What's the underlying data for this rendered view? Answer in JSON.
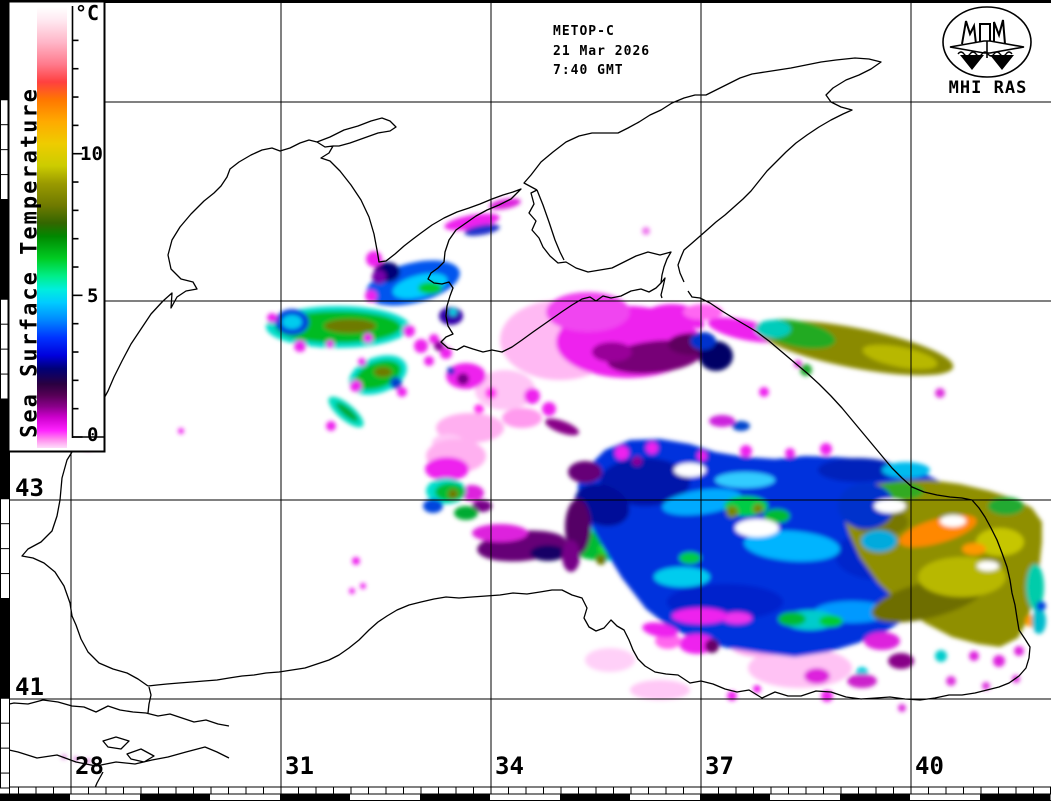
{
  "header": {
    "satellite": "METOP-C",
    "date": "21 Mar 2026",
    "time": "7:40 GMT"
  },
  "logo": {
    "label": "MHI RAS"
  },
  "colorbar": {
    "unit": "°C",
    "title": "Sea Surface Temperature",
    "tick_labels": [
      "0",
      "5",
      "10"
    ]
  },
  "axes": {
    "longitude_labels": [
      "28",
      "31",
      "34",
      "37",
      "40"
    ],
    "latitude_labels": [
      "43",
      "41"
    ]
  },
  "palette": {
    "cold_light_pink": "#ffc2f4",
    "cold_magenta": "#ee22ee",
    "cold_purple": "#770077",
    "navy": "#000a88",
    "deep_blue": "#0030dd",
    "cyan": "#00bbee",
    "green": "#00bb33",
    "olive": "#8f8f00",
    "yellow": "#b8b800",
    "orange": "#ff8800"
  }
}
